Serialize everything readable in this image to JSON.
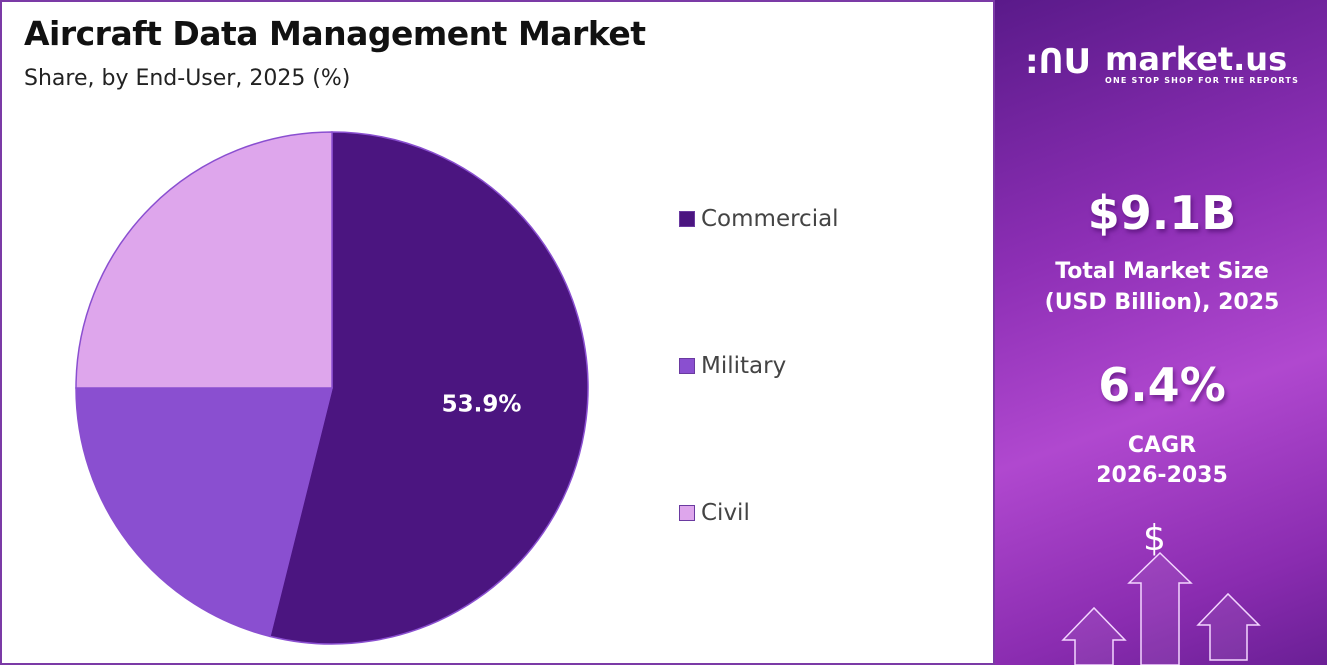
{
  "chart_data": {
    "type": "pie",
    "title": "Aircraft Data Management Market",
    "subtitle": "Share, by End-User, 2025 (%)",
    "categories": [
      "Commercial",
      "Military",
      "Civil"
    ],
    "values": [
      53.9,
      21.1,
      25.0
    ],
    "colors": [
      "#4b1580",
      "#8a4fd0",
      "#dea6ec"
    ],
    "data_labels": [
      "53.9%",
      "",
      ""
    ],
    "legend_placement": "right",
    "start_angle": "12 o'clock, clockwise"
  },
  "panel": {
    "logo_text": "market.us",
    "logo_tagline": "ONE STOP SHOP FOR THE REPORTS",
    "market_size": "$9.1B",
    "market_size_label_1": "Total Market Size",
    "market_size_label_2": "(USD Billion), 2025",
    "cagr": "6.4%",
    "cagr_label_1": "CAGR",
    "cagr_label_2": "2026-2035",
    "dollar_symbol": "$",
    "icons": [
      "market-us-logo-icon",
      "dollar-icon",
      "up-arrow-icon"
    ]
  }
}
